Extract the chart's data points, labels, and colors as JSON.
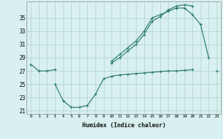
{
  "xlabel": "Humidex (Indice chaleur)",
  "x_values": [
    0,
    1,
    2,
    3,
    4,
    5,
    6,
    7,
    8,
    9,
    10,
    11,
    12,
    13,
    14,
    15,
    16,
    17,
    18,
    19,
    20,
    21,
    22,
    23
  ],
  "series1": [
    28.0,
    27.0,
    27.0,
    27.2,
    null,
    null,
    null,
    null,
    null,
    null,
    28.5,
    29.5,
    30.5,
    31.5,
    33.0,
    35.0,
    35.5,
    36.0,
    36.5,
    36.5,
    35.5,
    34.0,
    29.0,
    null
  ],
  "series2": [
    null,
    null,
    null,
    null,
    null,
    null,
    null,
    null,
    null,
    null,
    28.2,
    29.0,
    30.0,
    31.0,
    32.5,
    34.5,
    35.2,
    36.2,
    36.8,
    37.0,
    36.8,
    null,
    null,
    null
  ],
  "series3": [
    null,
    null,
    null,
    25.0,
    22.5,
    21.5,
    21.5,
    21.8,
    23.5,
    25.8,
    26.2,
    26.4,
    26.5,
    26.6,
    26.7,
    26.8,
    26.9,
    27.0,
    27.0,
    27.1,
    27.2,
    null,
    null,
    27.0
  ],
  "ylim": [
    20.5,
    37.5
  ],
  "xlim": [
    -0.5,
    23.5
  ],
  "yticks": [
    21,
    23,
    25,
    27,
    29,
    31,
    33,
    35
  ],
  "xticks": [
    0,
    1,
    2,
    3,
    4,
    5,
    6,
    7,
    8,
    9,
    10,
    11,
    12,
    13,
    14,
    15,
    16,
    17,
    18,
    19,
    20,
    21,
    22,
    23
  ],
  "line_color": "#2E7D6E",
  "bg_color": "#D8F0F0",
  "grid_color": "#AECDCD",
  "spine_color": "#888888"
}
